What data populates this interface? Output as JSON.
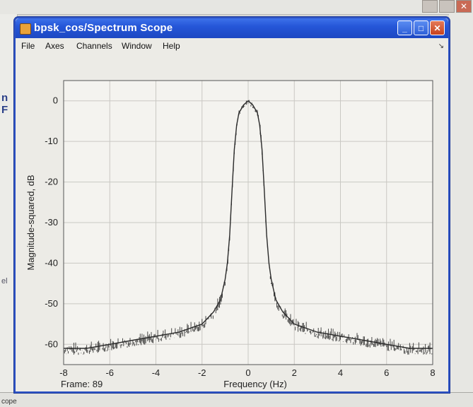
{
  "window": {
    "title": "bpsk_cos/Spectrum Scope",
    "menu": [
      "File",
      "Axes",
      "Channels",
      "Window",
      "Help"
    ]
  },
  "background": {
    "left_labels": [
      "n F",
      "el"
    ],
    "bottom_label": "cope"
  },
  "plot": {
    "frame_label": "Frame: 89",
    "xlabel": "Frequency (Hz)",
    "ylabel": "Magnitude-squared, dB",
    "colors": {
      "axes_bg": "#f4f3ef",
      "grid": "#c9c8c3",
      "trace": "#2a2a2a",
      "title_bar": "#2556d8"
    }
  },
  "chart_data": {
    "type": "line",
    "xlim": [
      -8,
      8
    ],
    "ylim": [
      -65,
      5
    ],
    "x_ticks": [
      -8,
      -6,
      -4,
      -2,
      0,
      2,
      4,
      6,
      8
    ],
    "y_ticks": [
      0,
      -10,
      -20,
      -30,
      -40,
      -50,
      -60
    ],
    "grid": true,
    "series": [
      {
        "x": [
          -8,
          -7,
          -6,
          -5,
          -4,
          -3,
          -2,
          -1.5,
          -1.2,
          -1.0,
          -0.9,
          -0.8,
          -0.7,
          -0.6,
          -0.5,
          -0.4,
          -0.2,
          0,
          0.2,
          0.4,
          0.5,
          0.6,
          0.7,
          0.8,
          0.9,
          1.0,
          1.2,
          1.5,
          2,
          3,
          4,
          5,
          6,
          7,
          8
        ],
        "y": [
          -61,
          -61,
          -60,
          -59,
          -58,
          -57,
          -55,
          -52,
          -49,
          -44,
          -40,
          -33,
          -22,
          -12,
          -6,
          -3,
          -1,
          0,
          -1,
          -3,
          -6,
          -12,
          -22,
          -33,
          -40,
          -44,
          -49,
          -52,
          -55,
          -57,
          -58,
          -59,
          -60,
          -61,
          -61
        ]
      }
    ]
  }
}
